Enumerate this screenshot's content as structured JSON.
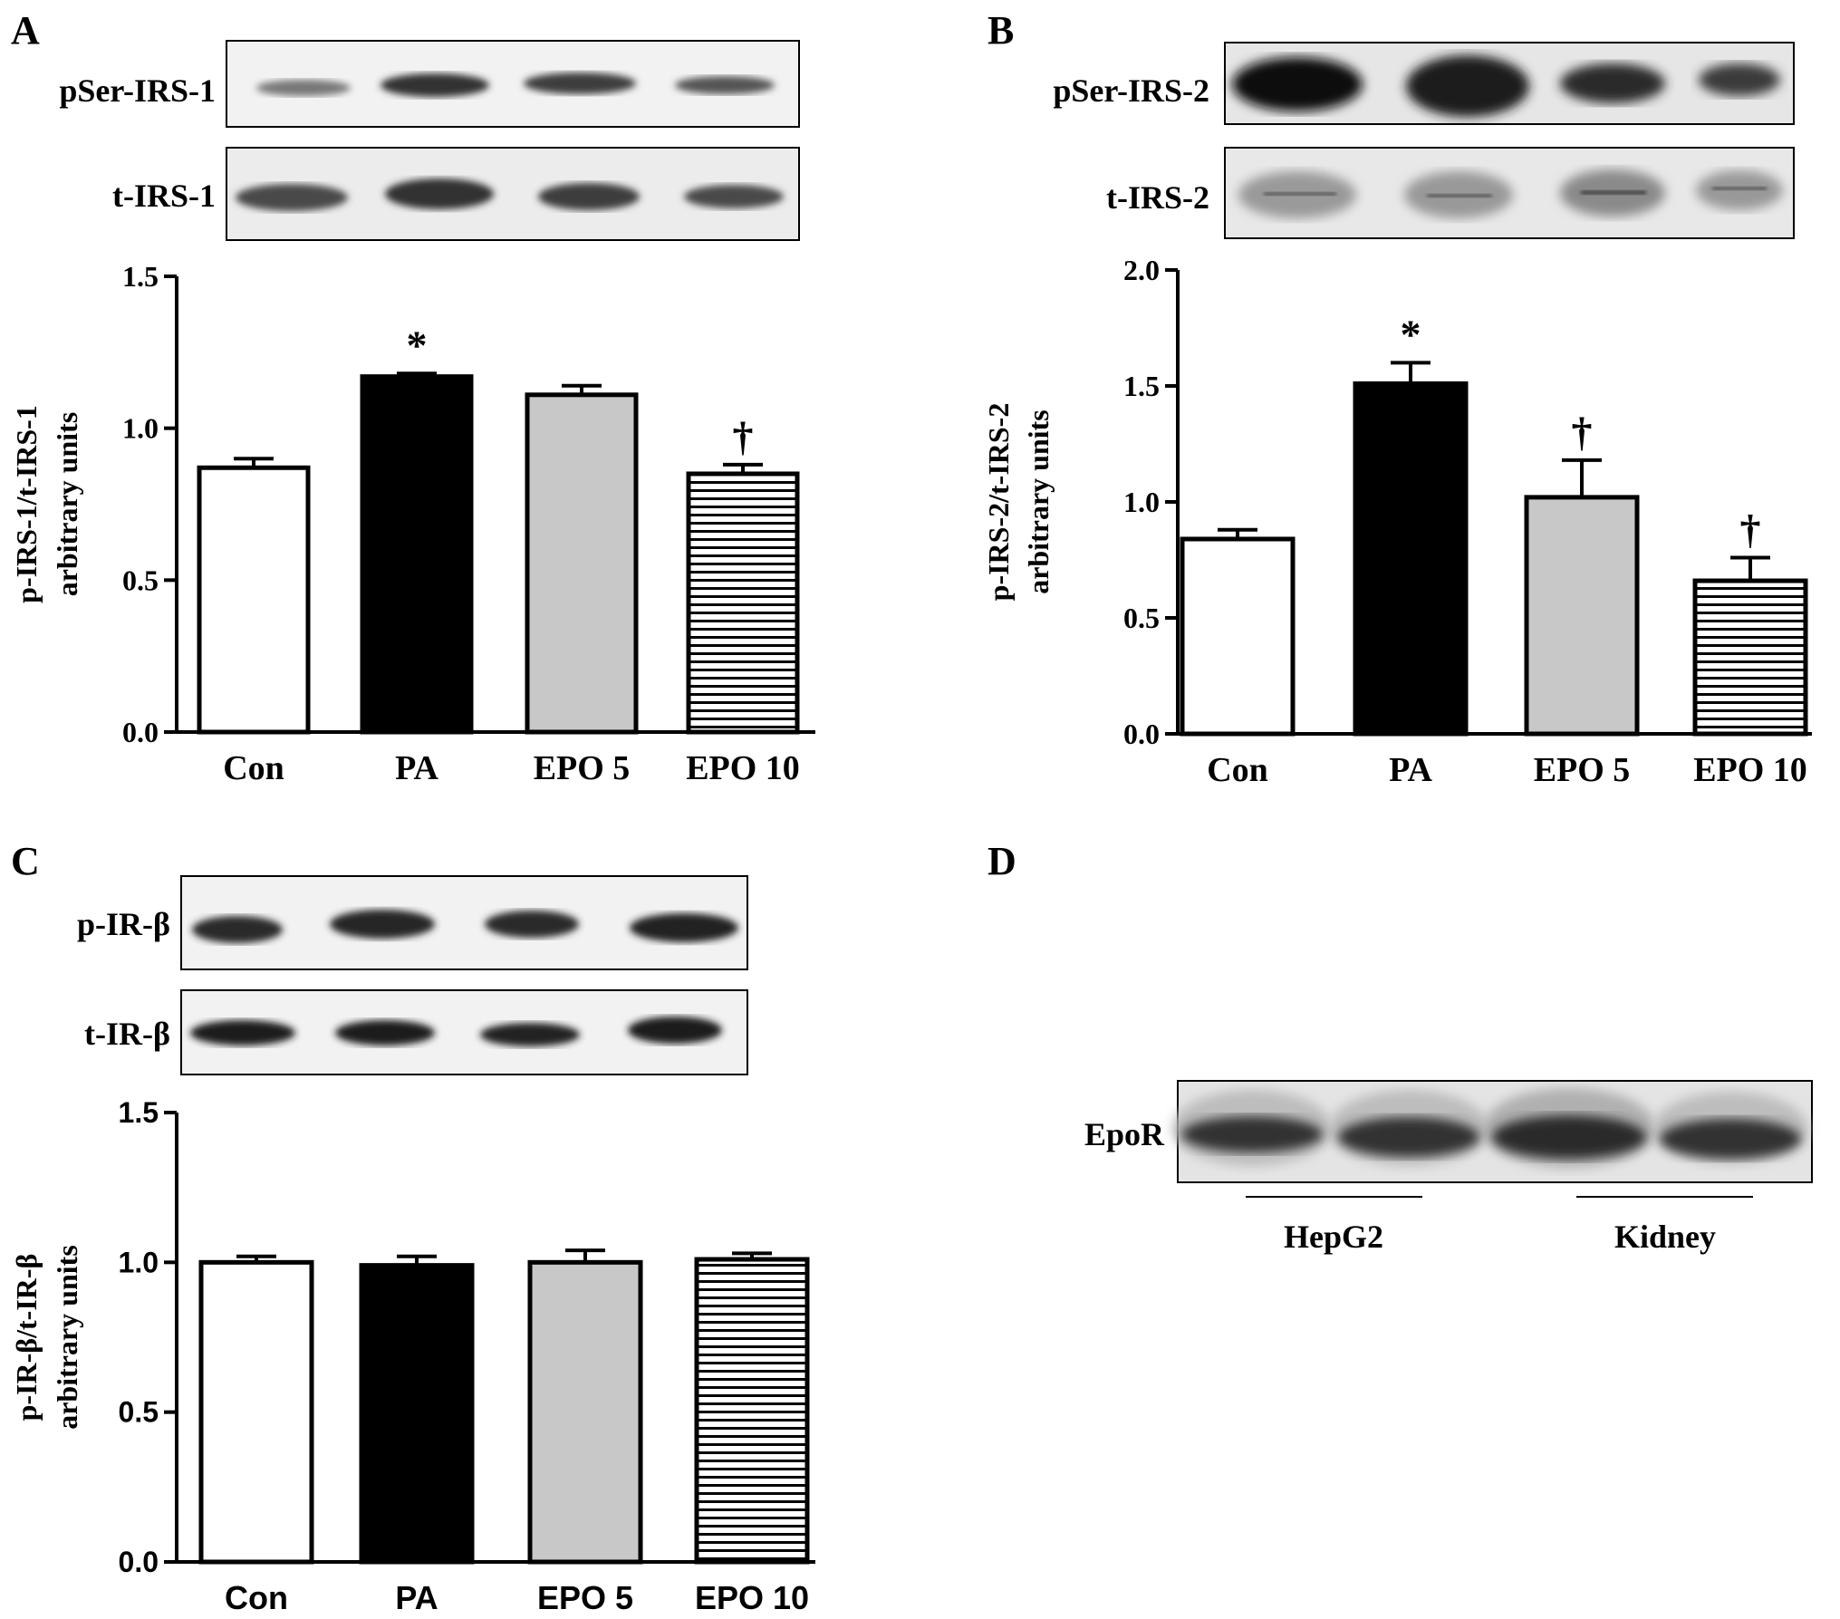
{
  "panels": {
    "A": {
      "letter": "A",
      "blot_labels": [
        "pSer-IRS-1",
        "t-IRS-1"
      ]
    },
    "B": {
      "letter": "B",
      "blot_labels": [
        "pSer-IRS-2",
        "t-IRS-2"
      ]
    },
    "C": {
      "letter": "C",
      "blot_labels": [
        "p-IR-β",
        "t-IR-β"
      ]
    },
    "D": {
      "letter": "D",
      "blot_label": "EpoR",
      "group_labels": [
        "HepG2",
        "Kidney"
      ]
    }
  },
  "chart_data": [
    {
      "panel": "A",
      "type": "bar",
      "categories": [
        "Con",
        "PA",
        "EPO 5",
        "EPO 10"
      ],
      "values": [
        0.87,
        1.17,
        1.11,
        0.85
      ],
      "errors": [
        0.03,
        0.01,
        0.03,
        0.03
      ],
      "significance": [
        "",
        "*",
        "",
        "†"
      ],
      "fills": [
        "white",
        "black",
        "gray",
        "hlines"
      ],
      "ylabel_lines": [
        "p-IRS-1/t-IRS-1",
        "arbitrary units"
      ],
      "ylim": [
        0,
        1.5
      ],
      "yticks": [
        "0.0",
        "0.5",
        "1.0",
        "1.5"
      ]
    },
    {
      "panel": "B",
      "type": "bar",
      "categories": [
        "Con",
        "PA",
        "EPO 5",
        "EPO 10"
      ],
      "values": [
        0.84,
        1.51,
        1.02,
        0.66
      ],
      "errors": [
        0.04,
        0.09,
        0.16,
        0.1
      ],
      "significance": [
        "",
        "*",
        "†",
        "†"
      ],
      "fills": [
        "white",
        "black",
        "gray",
        "hlines"
      ],
      "ylabel_lines": [
        "p-IRS-2/t-IRS-2",
        "arbitrary units"
      ],
      "ylim": [
        0,
        2.0
      ],
      "yticks": [
        "0.0",
        "0.5",
        "1.0",
        "1.5",
        "2.0"
      ]
    },
    {
      "panel": "C",
      "type": "bar",
      "categories": [
        "Con",
        "PA",
        "EPO 5",
        "EPO 10"
      ],
      "values": [
        1.0,
        0.99,
        1.0,
        1.01
      ],
      "errors": [
        0.02,
        0.03,
        0.04,
        0.02
      ],
      "significance": [
        "",
        "",
        "",
        ""
      ],
      "fills": [
        "white",
        "black",
        "gray",
        "hlines"
      ],
      "ylabel_lines": [
        "p-IR-β/t-IR-β",
        "arbitrary units"
      ],
      "ylim": [
        0,
        1.5
      ],
      "yticks": [
        "0.0",
        "0.5",
        "1.0",
        "1.5"
      ]
    }
  ]
}
